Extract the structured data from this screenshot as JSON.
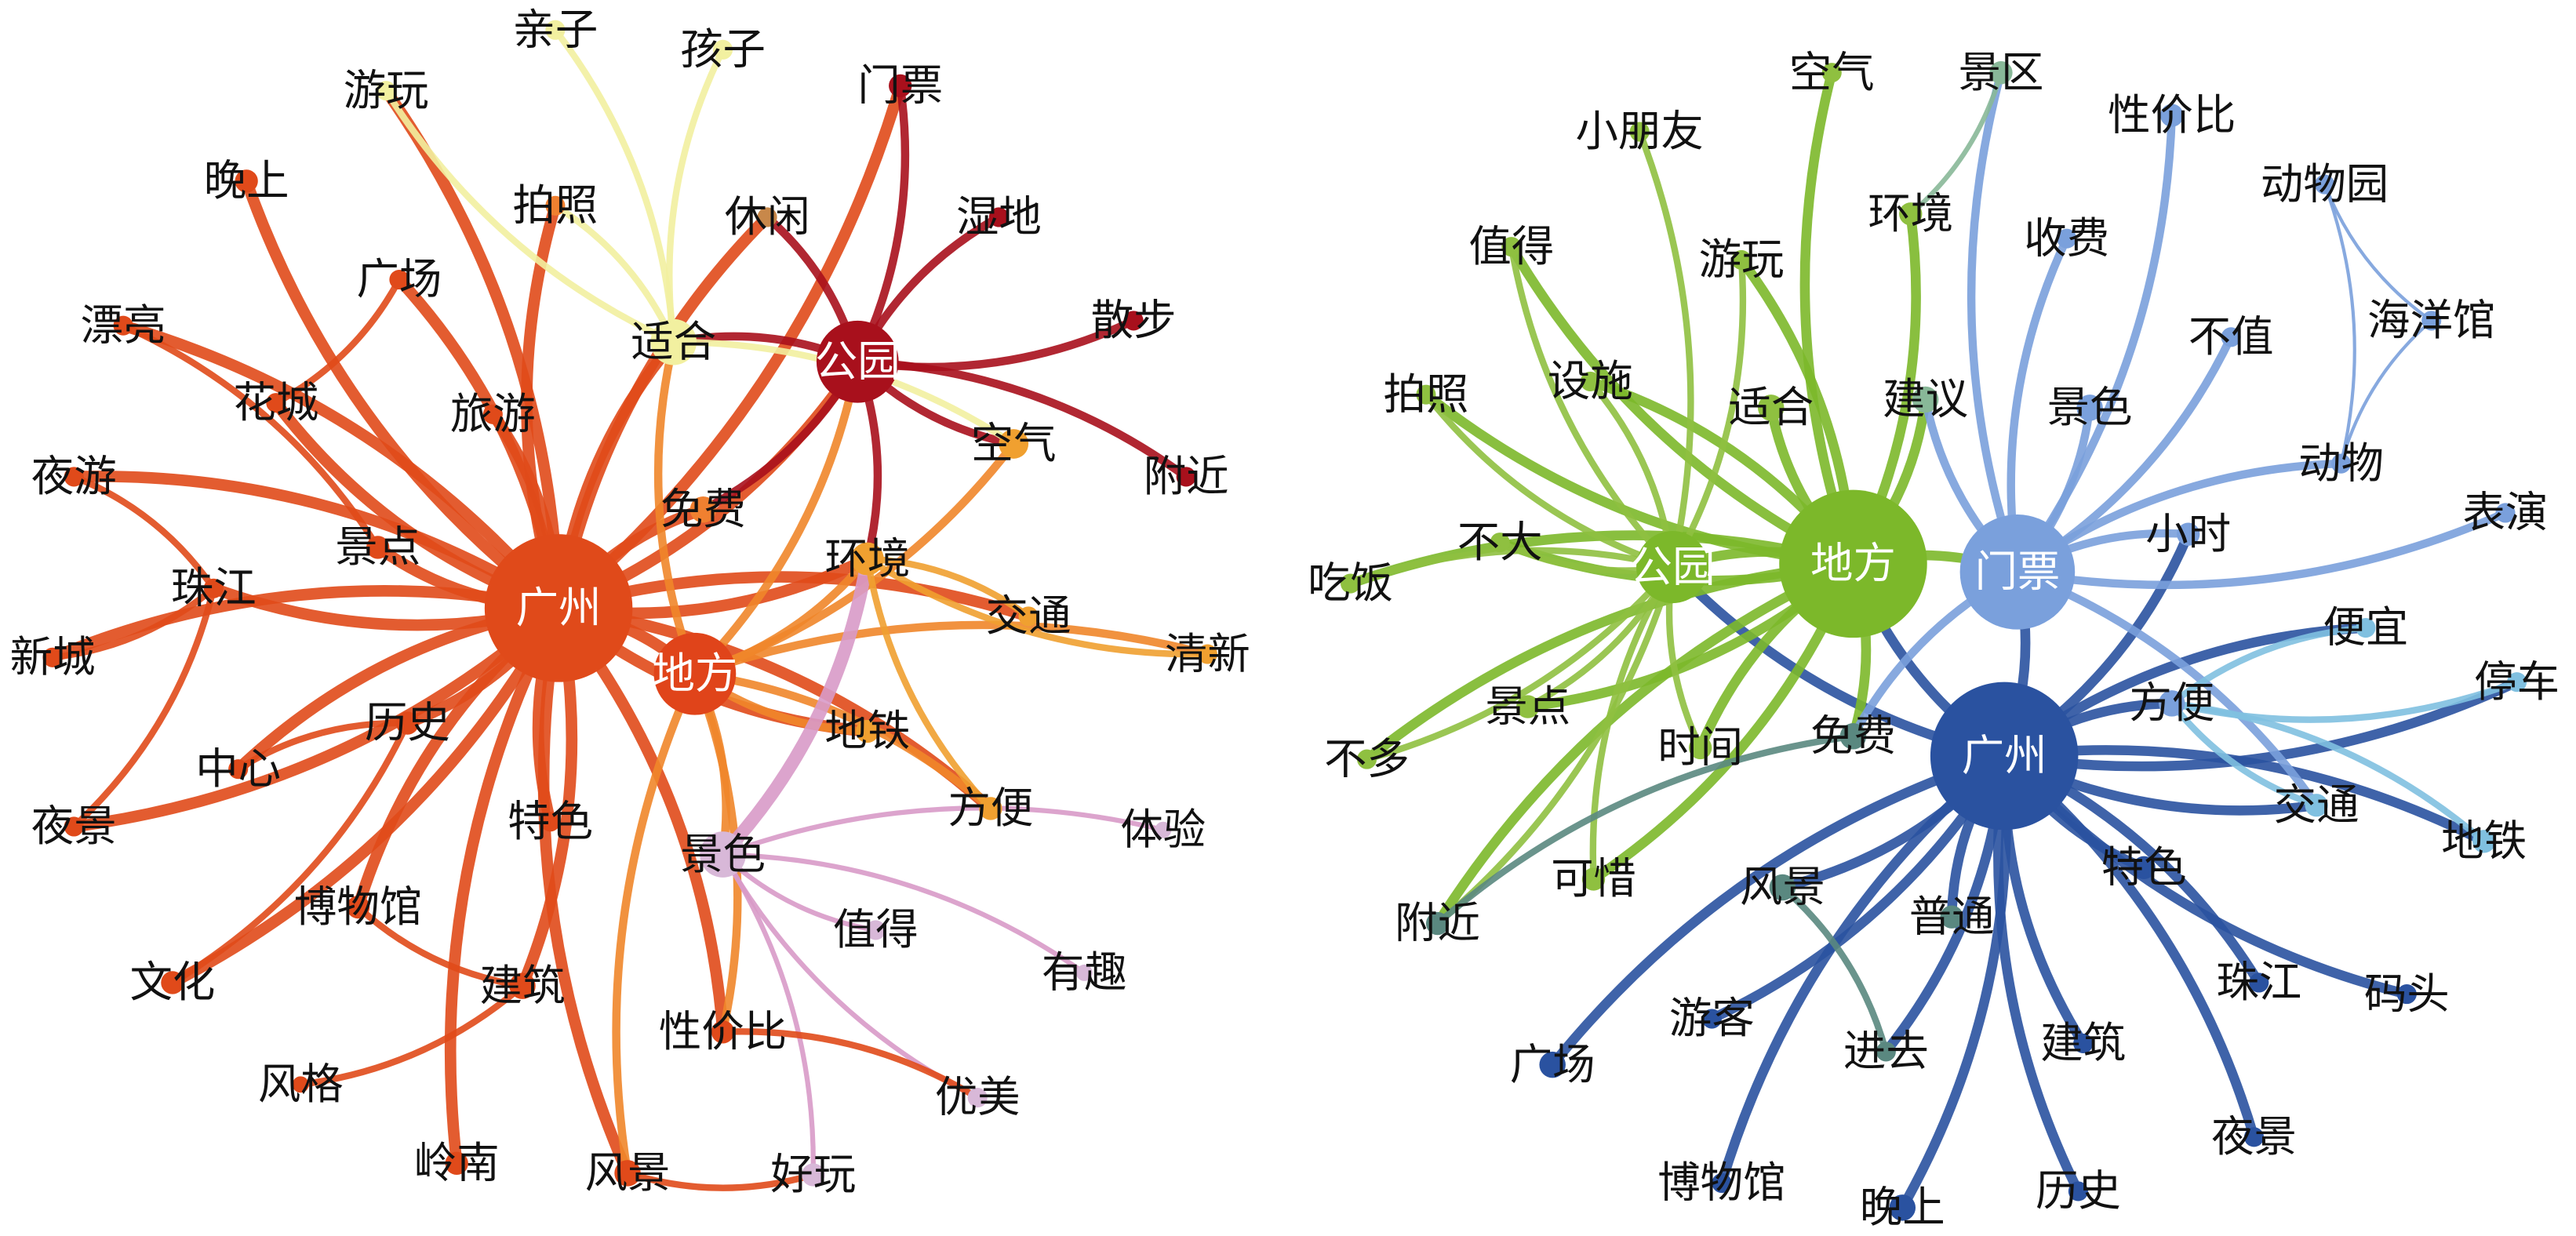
{
  "left_graph": {
    "nodes": [
      "广州",
      "地方",
      "公园",
      "适合",
      "环境",
      "景色",
      "空气",
      "免费",
      "门票",
      "湿地",
      "散步",
      "附近",
      "清新",
      "交通",
      "地铁",
      "方便",
      "体验",
      "值得",
      "有趣",
      "优美",
      "好玩",
      "风景",
      "性价比",
      "岭南",
      "风格",
      "建筑",
      "特色",
      "文化",
      "博物馆",
      "历史",
      "中心",
      "夜景",
      "新城",
      "珠江",
      "夜游",
      "景点",
      "漂亮",
      "花城",
      "广场",
      "晚上",
      "旅游",
      "拍照",
      "游玩",
      "亲子",
      "孩子",
      "休闲"
    ]
  },
  "right_graph": {
    "nodes": [
      "广州",
      "地方",
      "门票",
      "公园",
      "空气",
      "景区",
      "小朋友",
      "性价比",
      "动物园",
      "环境",
      "值得",
      "游玩",
      "收费",
      "海洋馆",
      "不值",
      "拍照",
      "设施",
      "适合",
      "建议",
      "景色",
      "动物",
      "表演",
      "不大",
      "吃饭",
      "小时",
      "便宜",
      "停车",
      "方便",
      "景点",
      "时间",
      "免费",
      "不多",
      "交通",
      "地铁",
      "特色",
      "可惜",
      "风景",
      "附近",
      "普通",
      "珠江",
      "码头",
      "游客",
      "广场",
      "进去",
      "建筑",
      "夜景",
      "博物馆",
      "晚上",
      "历史"
    ]
  }
}
